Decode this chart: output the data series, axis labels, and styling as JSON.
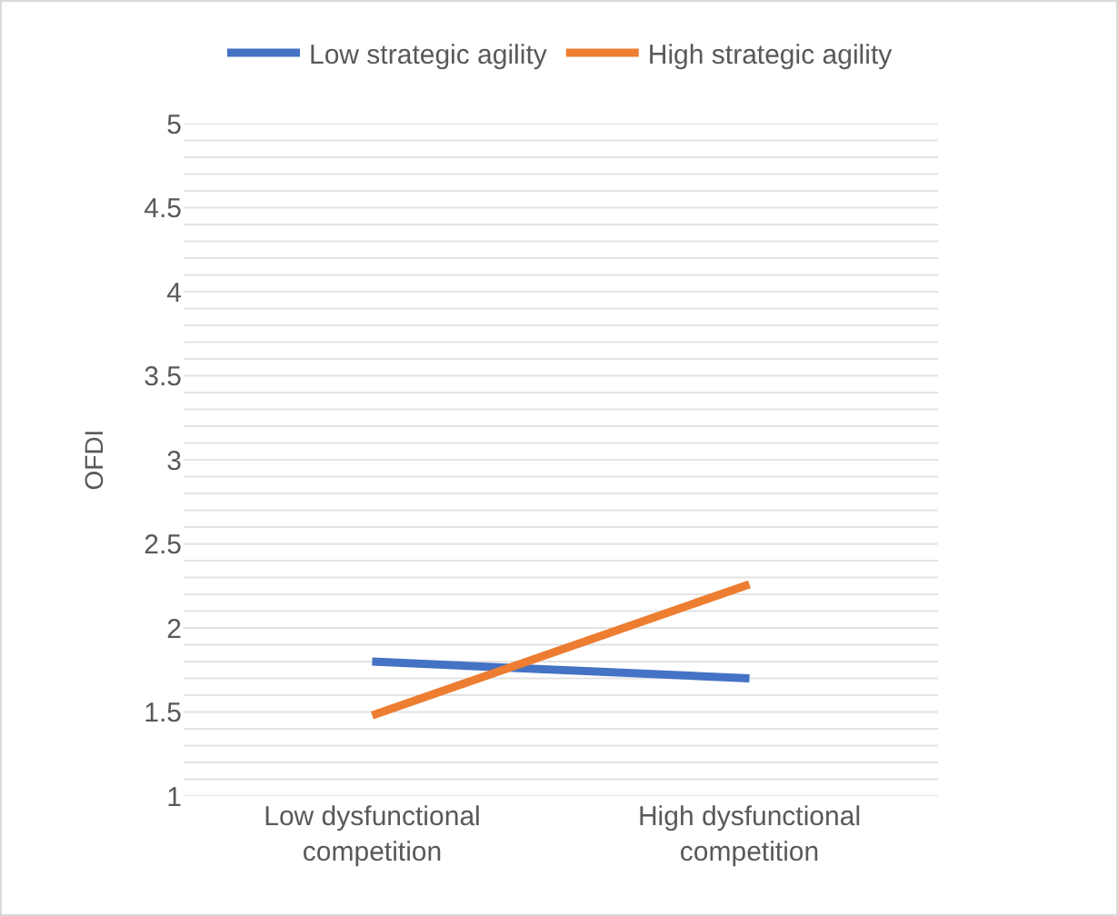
{
  "chart_data": {
    "type": "line",
    "ylabel": "OFDI",
    "categories": [
      "Low dysfunctional competition",
      "High dysfunctional competition"
    ],
    "series": [
      {
        "name": "Low strategic agility",
        "color": "#4472c4",
        "values": [
          1.8,
          1.7
        ]
      },
      {
        "name": "High strategic agility",
        "color": "#ed7d31",
        "values": [
          1.48,
          2.26
        ]
      }
    ],
    "ylim": [
      1,
      5
    ],
    "yticks": [
      1,
      {
        "value": 1.1,
        "label": null
      },
      {
        "value": 1.2,
        "label": null
      },
      {
        "value": 1.3,
        "label": null
      },
      {
        "value": 1.4,
        "label": null
      },
      1.5,
      {
        "value": 1.6,
        "label": null
      },
      {
        "value": 1.7,
        "label": null
      },
      {
        "value": 1.8,
        "label": null
      },
      {
        "value": 1.9,
        "label": null
      },
      2,
      {
        "value": 2.1,
        "label": null
      },
      {
        "value": 2.2,
        "label": null
      },
      {
        "value": 2.3,
        "label": null
      },
      {
        "value": 2.4,
        "label": null
      },
      2.5,
      {
        "value": 2.6,
        "label": null
      },
      {
        "value": 2.7,
        "label": null
      },
      {
        "value": 2.8,
        "label": null
      },
      {
        "value": 2.9,
        "label": null
      },
      3,
      {
        "value": 3.1,
        "label": null
      },
      {
        "value": 3.2,
        "label": null
      },
      {
        "value": 3.3,
        "label": null
      },
      {
        "value": 3.4,
        "label": null
      },
      3.5,
      {
        "value": 3.6,
        "label": null
      },
      {
        "value": 3.7,
        "label": null
      },
      {
        "value": 3.8,
        "label": null
      },
      {
        "value": 3.9,
        "label": null
      },
      4,
      {
        "value": 4.1,
        "label": null
      },
      {
        "value": 4.2,
        "label": null
      },
      {
        "value": 4.3,
        "label": null
      },
      {
        "value": 4.4,
        "label": null
      },
      4.5,
      {
        "value": 4.6,
        "label": null
      },
      {
        "value": 4.7,
        "label": null
      },
      {
        "value": 4.8,
        "label": null
      },
      {
        "value": 4.9,
        "label": null
      },
      5
    ],
    "grid": "y",
    "legend": "top",
    "marker": "none",
    "line_style": "solid"
  }
}
